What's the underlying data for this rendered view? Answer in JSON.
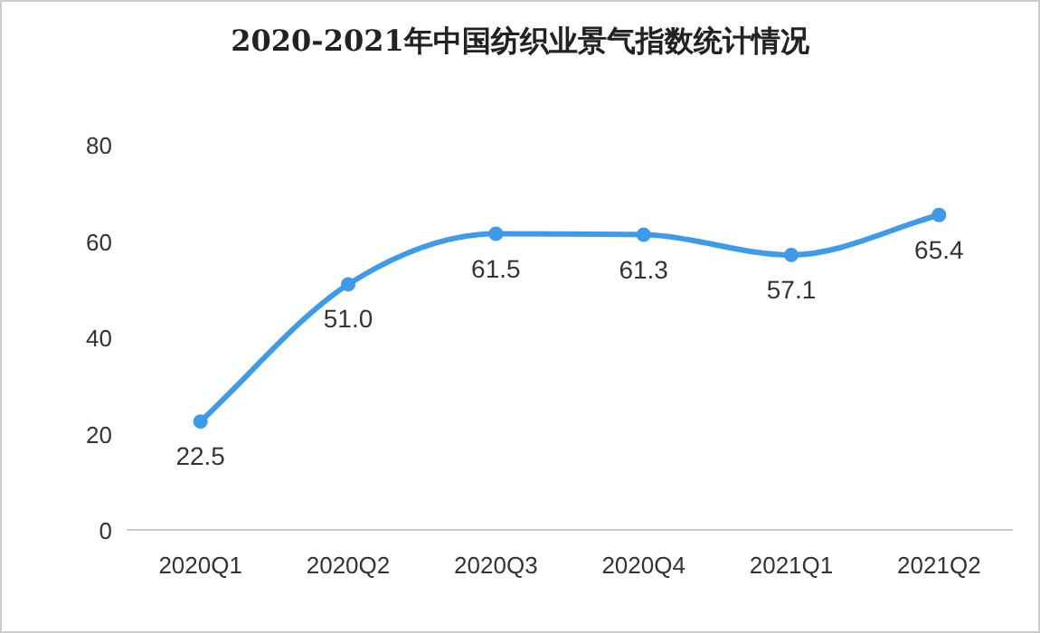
{
  "chart_data": {
    "type": "line",
    "title": "2020-2021年中国纺织业景气指数统计情况",
    "categories": [
      "2020Q1",
      "2020Q2",
      "2020Q3",
      "2020Q4",
      "2021Q1",
      "2021Q2"
    ],
    "values": [
      22.5,
      51.0,
      61.5,
      61.3,
      57.1,
      65.4
    ],
    "color": "#3d9be9",
    "ylim": [
      0,
      80
    ],
    "yticks": [
      0,
      20,
      40,
      60,
      80
    ],
    "value_labels": [
      "22.5",
      "51.0",
      "61.5",
      "61.3",
      "57.1",
      "65.4"
    ],
    "marker": "circle",
    "line_style": "solid"
  }
}
